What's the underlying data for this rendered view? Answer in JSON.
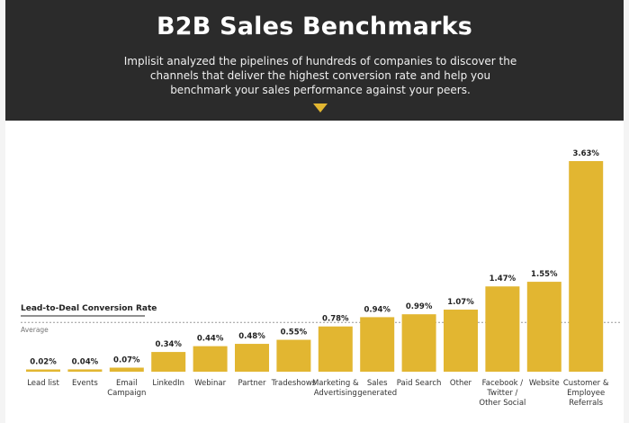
{
  "header": {
    "title": "B2B Sales Benchmarks",
    "subtitle": "Implisit analyzed the pipelines of hundreds of companies to discover the channels that deliver the highest conversion rate and help you benchmark your sales performance against your peers."
  },
  "colors": {
    "bar": "#e2b631",
    "header_bg": "#2b2b2b",
    "accent": "#e2b631"
  },
  "chart_data": {
    "type": "bar",
    "title": "B2B Sales Benchmarks",
    "ylabel": "Lead-to-Deal Conversion Rate",
    "average_label": "Average",
    "average_value": 0.85,
    "ylim": [
      0,
      3.63
    ],
    "categories": [
      [
        "Lead list"
      ],
      [
        "Events"
      ],
      [
        "Email",
        "Campaign"
      ],
      [
        "LinkedIn"
      ],
      [
        "Webinar"
      ],
      [
        "Partner"
      ],
      [
        "Tradeshows"
      ],
      [
        "Marketing &",
        "Advertising"
      ],
      [
        "Sales",
        "generated"
      ],
      [
        "Paid Search"
      ],
      [
        "Other"
      ],
      [
        "Facebook /",
        "Twitter /",
        "Other Social"
      ],
      [
        "Website"
      ],
      [
        "Customer &",
        "Employee",
        "Referrals"
      ]
    ],
    "values": [
      0.02,
      0.04,
      0.07,
      0.34,
      0.44,
      0.48,
      0.55,
      0.78,
      0.94,
      0.99,
      1.07,
      1.47,
      1.55,
      3.63
    ],
    "value_labels": [
      "0.02%",
      "0.04%",
      "0.07%",
      "0.34%",
      "0.44%",
      "0.48%",
      "0.55%",
      "0.78%",
      "0.94%",
      "0.99%",
      "1.07%",
      "1.47%",
      "1.55%",
      "3.63%"
    ]
  }
}
